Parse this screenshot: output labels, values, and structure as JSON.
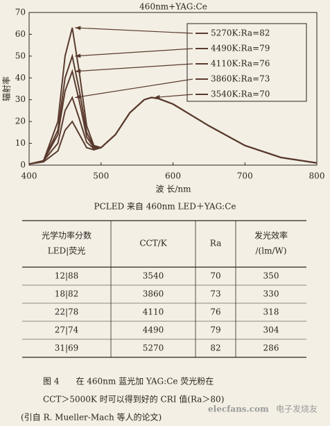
{
  "chart_data": {
    "type": "line",
    "title": "460nm+YAG:Ce",
    "x_label": "波 长/nm",
    "y_label": "辐射率",
    "x": [
      400,
      420,
      440,
      450,
      460,
      470,
      480,
      490,
      500,
      520,
      540,
      560,
      570,
      580,
      600,
      620,
      650,
      700,
      750,
      800
    ],
    "series": [
      {
        "name": "5270K:Ra=82",
        "color": "#5a3a2e",
        "values": [
          0.5,
          2,
          20,
          50,
          63,
          42,
          18,
          9,
          8,
          14,
          24,
          30,
          31,
          30.5,
          28,
          24,
          18,
          9,
          3.5,
          1
        ]
      },
      {
        "name": "4490K:Ra=79",
        "color": "#5a3a2e",
        "values": [
          0.5,
          2,
          16,
          40,
          50,
          34,
          15,
          8.5,
          8,
          14,
          24,
          30,
          31,
          30.5,
          28,
          24,
          18,
          9,
          3.5,
          1
        ]
      },
      {
        "name": "4110K:Ra=76",
        "color": "#5a3a2e",
        "values": [
          0.5,
          2,
          14,
          34,
          43,
          29,
          13,
          8,
          8,
          14,
          24,
          30,
          31,
          30.5,
          28,
          24,
          18,
          9,
          3.5,
          1
        ]
      },
      {
        "name": "3860K:Ra=73",
        "color": "#5a3a2e",
        "values": [
          0.5,
          2,
          10,
          25,
          31,
          21,
          10.5,
          7.5,
          8,
          14,
          24,
          30,
          31,
          30.5,
          28,
          24,
          18,
          9,
          3.5,
          1
        ]
      },
      {
        "name": "3540K:Ra=70",
        "color": "#5a3a2e",
        "values": [
          0.5,
          1.5,
          6.5,
          16,
          20,
          14,
          8,
          7,
          8,
          14,
          24,
          30,
          31,
          30.5,
          28,
          24,
          18,
          9,
          3.5,
          1
        ]
      }
    ],
    "xlim": [
      400,
      800
    ],
    "xticks": [
      400,
      500,
      600,
      700,
      800
    ],
    "ylim": [
      0,
      70
    ],
    "yticks": [
      0,
      10,
      20,
      30,
      40,
      50,
      60,
      70
    ],
    "legend": "upper right"
  },
  "table": {
    "title": "PCLED 来自 460nm LED＋YAG:Ce",
    "header": [
      [
        "光学功率分数",
        "LED|荧光"
      ],
      [
        "CCT/K"
      ],
      [
        "Ra"
      ],
      [
        "发光效率",
        "/(lm/W)"
      ]
    ],
    "rows": [
      [
        "12|88",
        "3540",
        "70",
        "350"
      ],
      [
        "18|82",
        "3860",
        "73",
        "330"
      ],
      [
        "22|78",
        "4110",
        "76",
        "318"
      ],
      [
        "27|74",
        "4490",
        "79",
        "304"
      ],
      [
        "31|69",
        "5270",
        "82",
        "286"
      ]
    ]
  },
  "caption": {
    "line1": "图 4　　在 460nm 蓝光加 YAG:Ce 荧光粉在",
    "line2": "CCT＞5000K 时可以得到好的 CRI 值(Ra＞80)",
    "line3": "(引自 R. Mueller-Mach 等人的论文)"
  },
  "watermark": {
    "site": "elecfans.com",
    "brand": "电子发烧友"
  }
}
